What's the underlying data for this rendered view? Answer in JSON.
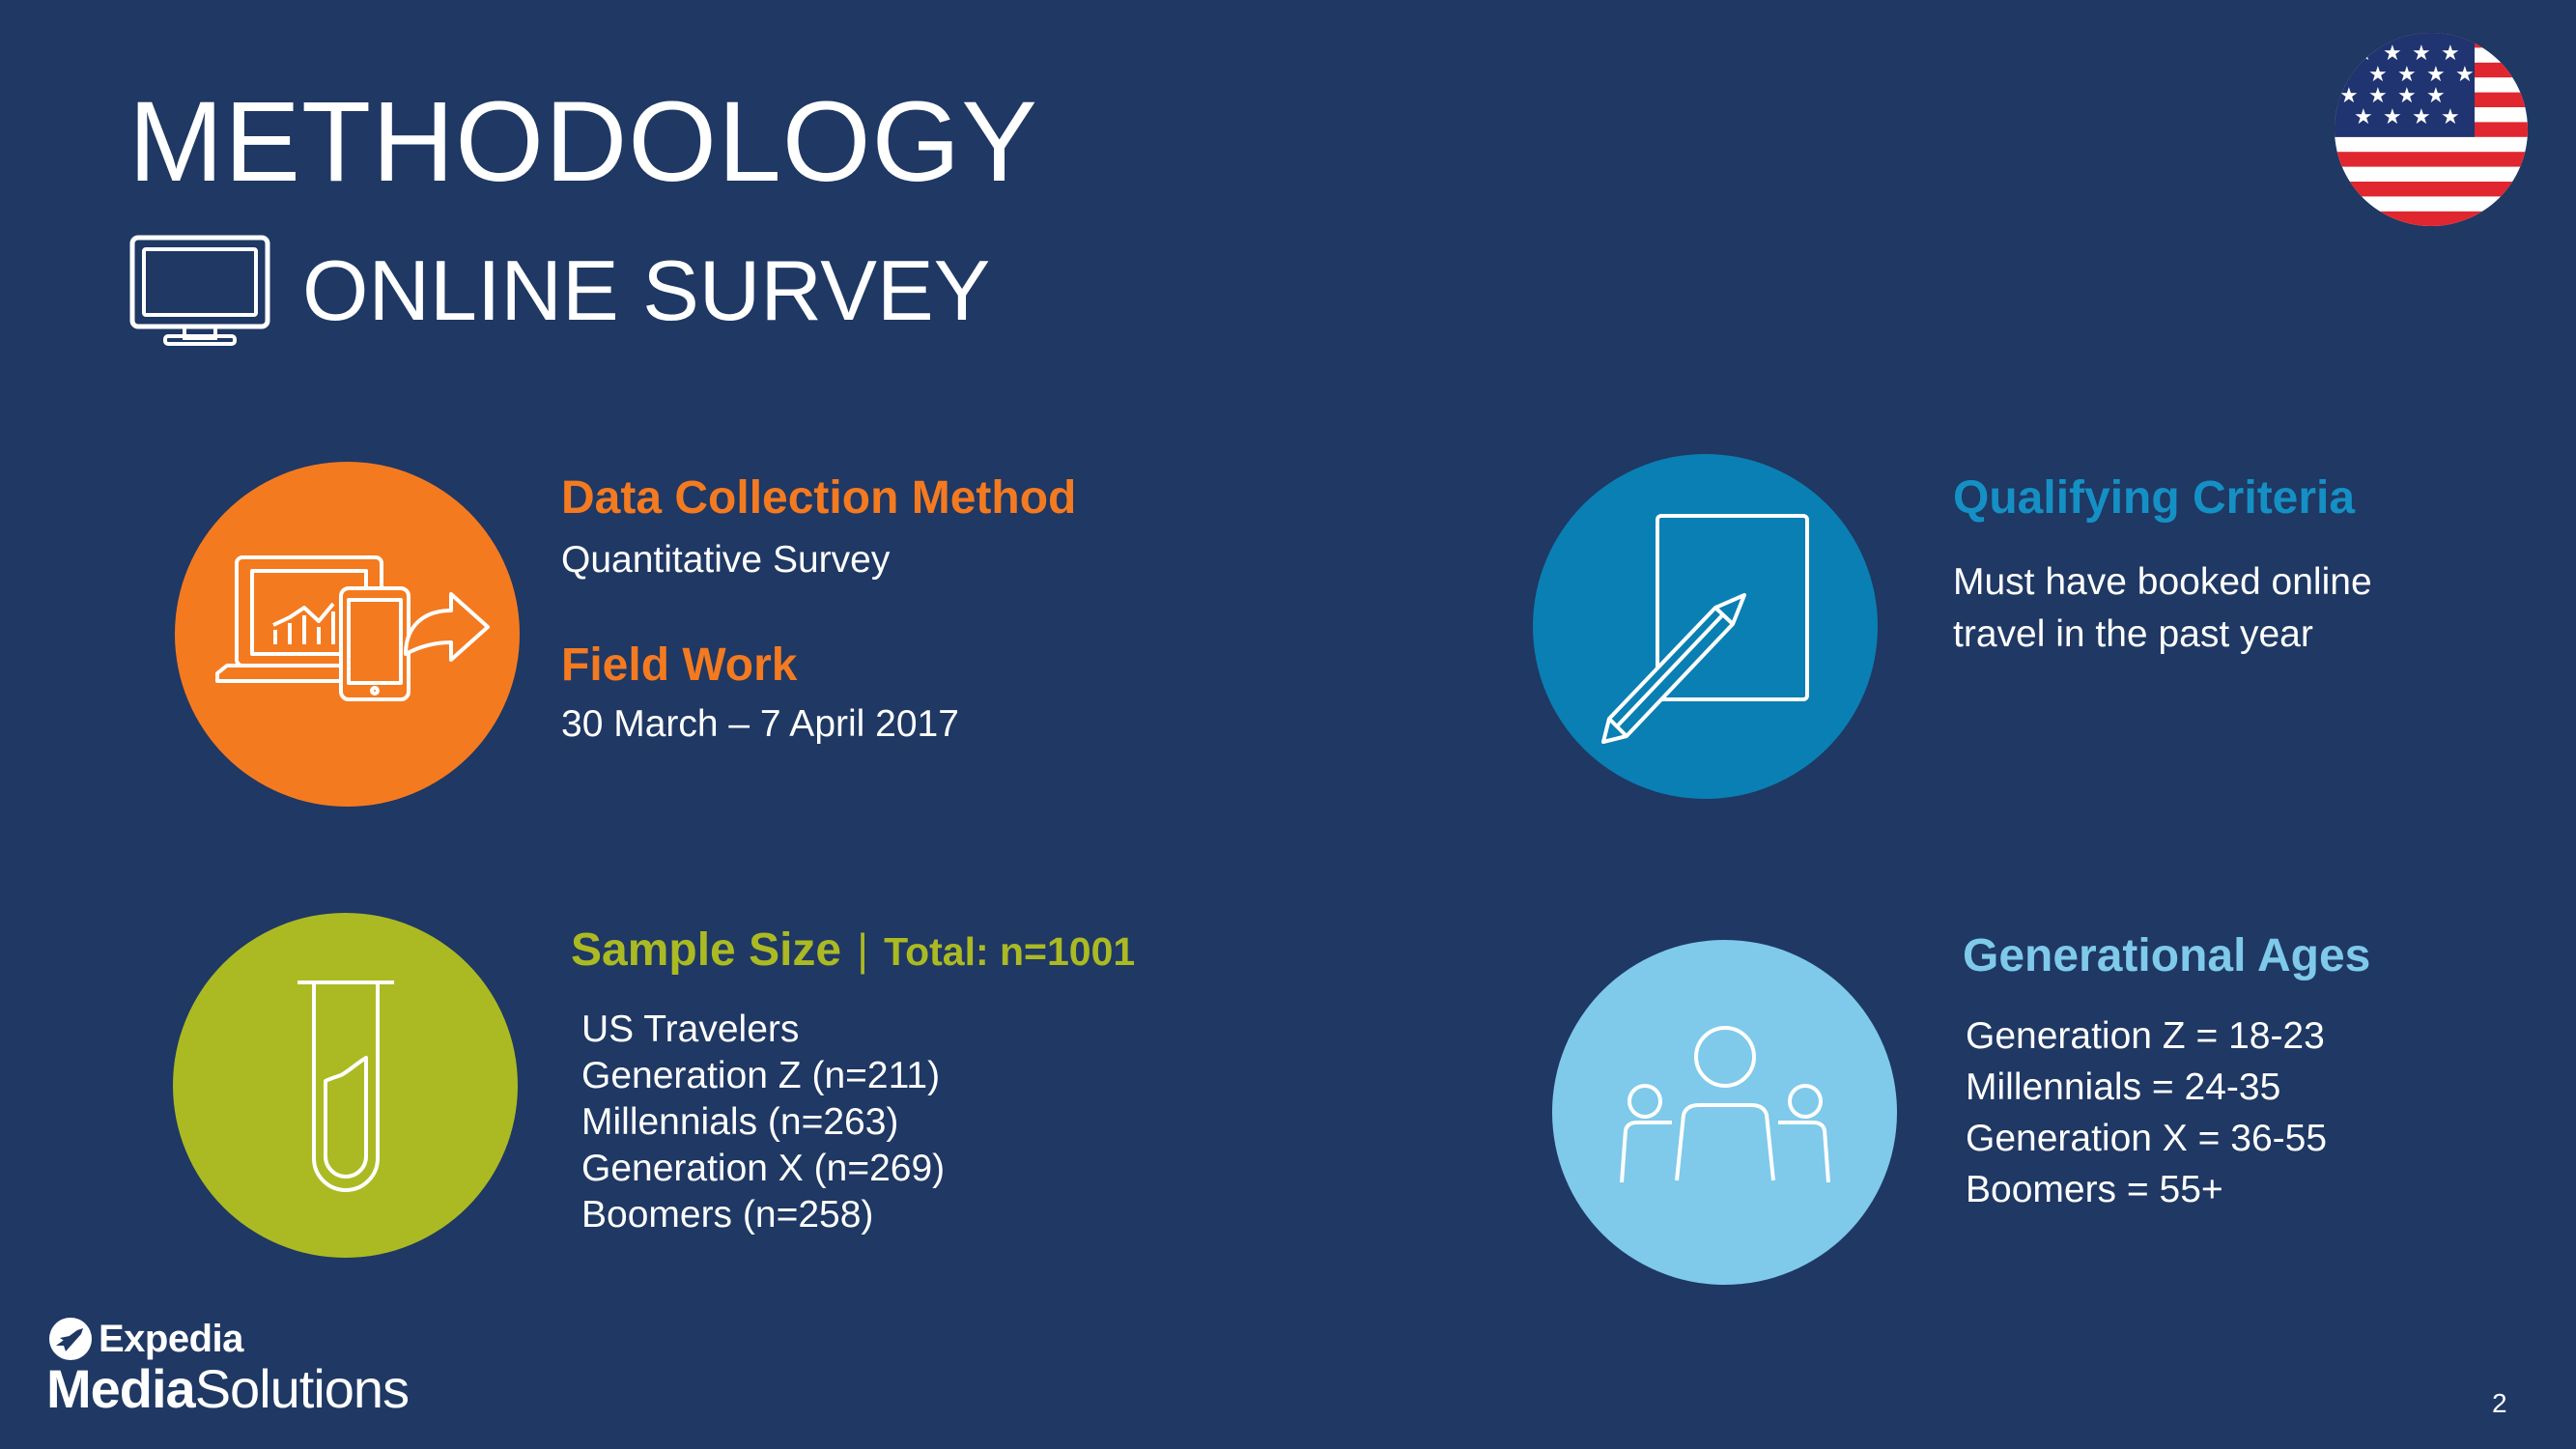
{
  "header": {
    "title": "METHODOLOGY",
    "subtitle": "ONLINE SURVEY"
  },
  "sections": {
    "data_collection": {
      "heading": "Data Collection Method",
      "text": "Quantitative Survey",
      "icon": "laptop-tablet-chart-icon",
      "color": "#f47a20"
    },
    "field_work": {
      "heading": "Field Work",
      "text": "30 March – 7 April 2017"
    },
    "qualifying": {
      "heading": "Qualifying Criteria",
      "lines": [
        "Must have booked online",
        "travel in the past year"
      ],
      "icon": "notepad-pencil-icon",
      "color": "#0a7fb3"
    },
    "sample_size": {
      "heading": "Sample Size",
      "separator": "|",
      "total": "Total: n=1001",
      "items": [
        "US Travelers",
        "Generation Z (n=211)",
        "Millennials (n=263)",
        "Generation X (n=269)",
        "Boomers (n=258)"
      ],
      "icon": "test-tube-icon",
      "color": "#abba22"
    },
    "generational_ages": {
      "heading": "Generational Ages",
      "items": [
        "Generation Z = 18-23",
        "Millennials = 24-35",
        "Generation X = 36-55",
        "Boomers = 55+"
      ],
      "icon": "people-group-icon",
      "color": "#7fc9ea"
    }
  },
  "footer": {
    "logo_top": "Expedia",
    "logo_bottom_bold": "Media",
    "logo_bottom_regular": "Solutions",
    "page_number": "2"
  },
  "icons": {
    "monitor": "monitor-icon",
    "flag": "us-flag-icon"
  }
}
